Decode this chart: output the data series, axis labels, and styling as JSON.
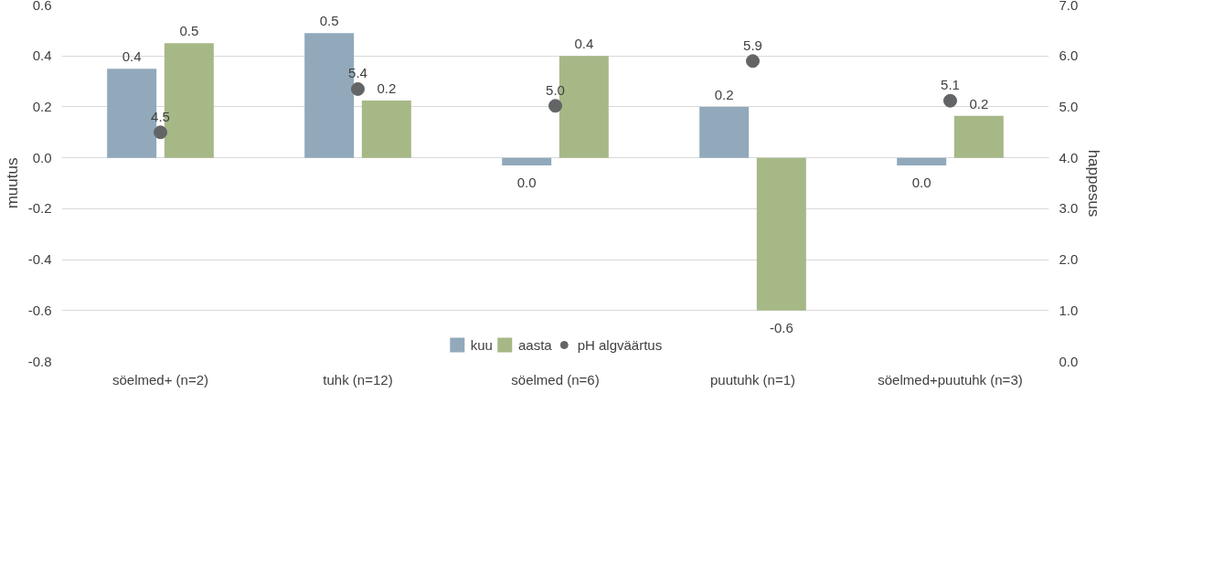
{
  "chart_data": {
    "type": "bar",
    "ylabel": "muutus",
    "y2label": "happesus",
    "categories": [
      "söelmed+ (n=2)",
      "tuhk (n=12)",
      "söelmed (n=6)",
      "puutuhk (n=1)",
      "söelmed+puutuhk (n=3)"
    ],
    "series": [
      {
        "name": "kuu",
        "color": "#91a9bb",
        "values": [
          0.35,
          0.49,
          -0.03,
          0.2,
          -0.03
        ],
        "value_labels": [
          "0.4",
          "0.5",
          "0.0",
          "0.2",
          "0.0"
        ]
      },
      {
        "name": "aasta",
        "color": "#a6b886",
        "values": [
          0.45,
          0.225,
          0.4,
          -0.6,
          0.165
        ],
        "value_labels": [
          "0.5",
          "0.2",
          "0.4",
          "-0.6",
          "0.2"
        ]
      },
      {
        "name": "pH algväärtus",
        "type": "scatter",
        "axis": "y2",
        "color": "#636466",
        "marker": "circle",
        "values": [
          4.5,
          5.35,
          5.02,
          5.9,
          5.12
        ],
        "value_labels": [
          "4.5",
          "5.4",
          "5.0",
          "5.9",
          "5.1"
        ]
      }
    ],
    "ylim": [
      -0.8,
      0.6
    ],
    "yticks": [
      {
        "value": -0.8,
        "label": "-0.8"
      },
      {
        "value": -0.6,
        "label": "-0.6"
      },
      {
        "value": -0.4,
        "label": "-0.4"
      },
      {
        "value": -0.2,
        "label": "-0.2"
      },
      {
        "value": 0,
        "label": "0.0"
      },
      {
        "value": 0.2,
        "label": "0.2"
      },
      {
        "value": 0.4,
        "label": "0.4"
      },
      {
        "value": 0.6,
        "label": "0.6"
      }
    ],
    "y2lim": [
      0,
      7
    ],
    "y2ticks": [
      {
        "value": 0,
        "label": "0.0"
      },
      {
        "value": 1,
        "label": "1.0"
      },
      {
        "value": 2,
        "label": "2.0"
      },
      {
        "value": 3,
        "label": "3.0"
      },
      {
        "value": 4,
        "label": "4.0"
      },
      {
        "value": 5,
        "label": "5.0"
      },
      {
        "value": 6,
        "label": "6.0"
      },
      {
        "value": 7,
        "label": "7.0"
      }
    ],
    "grid": "y",
    "legend": "bottom"
  }
}
